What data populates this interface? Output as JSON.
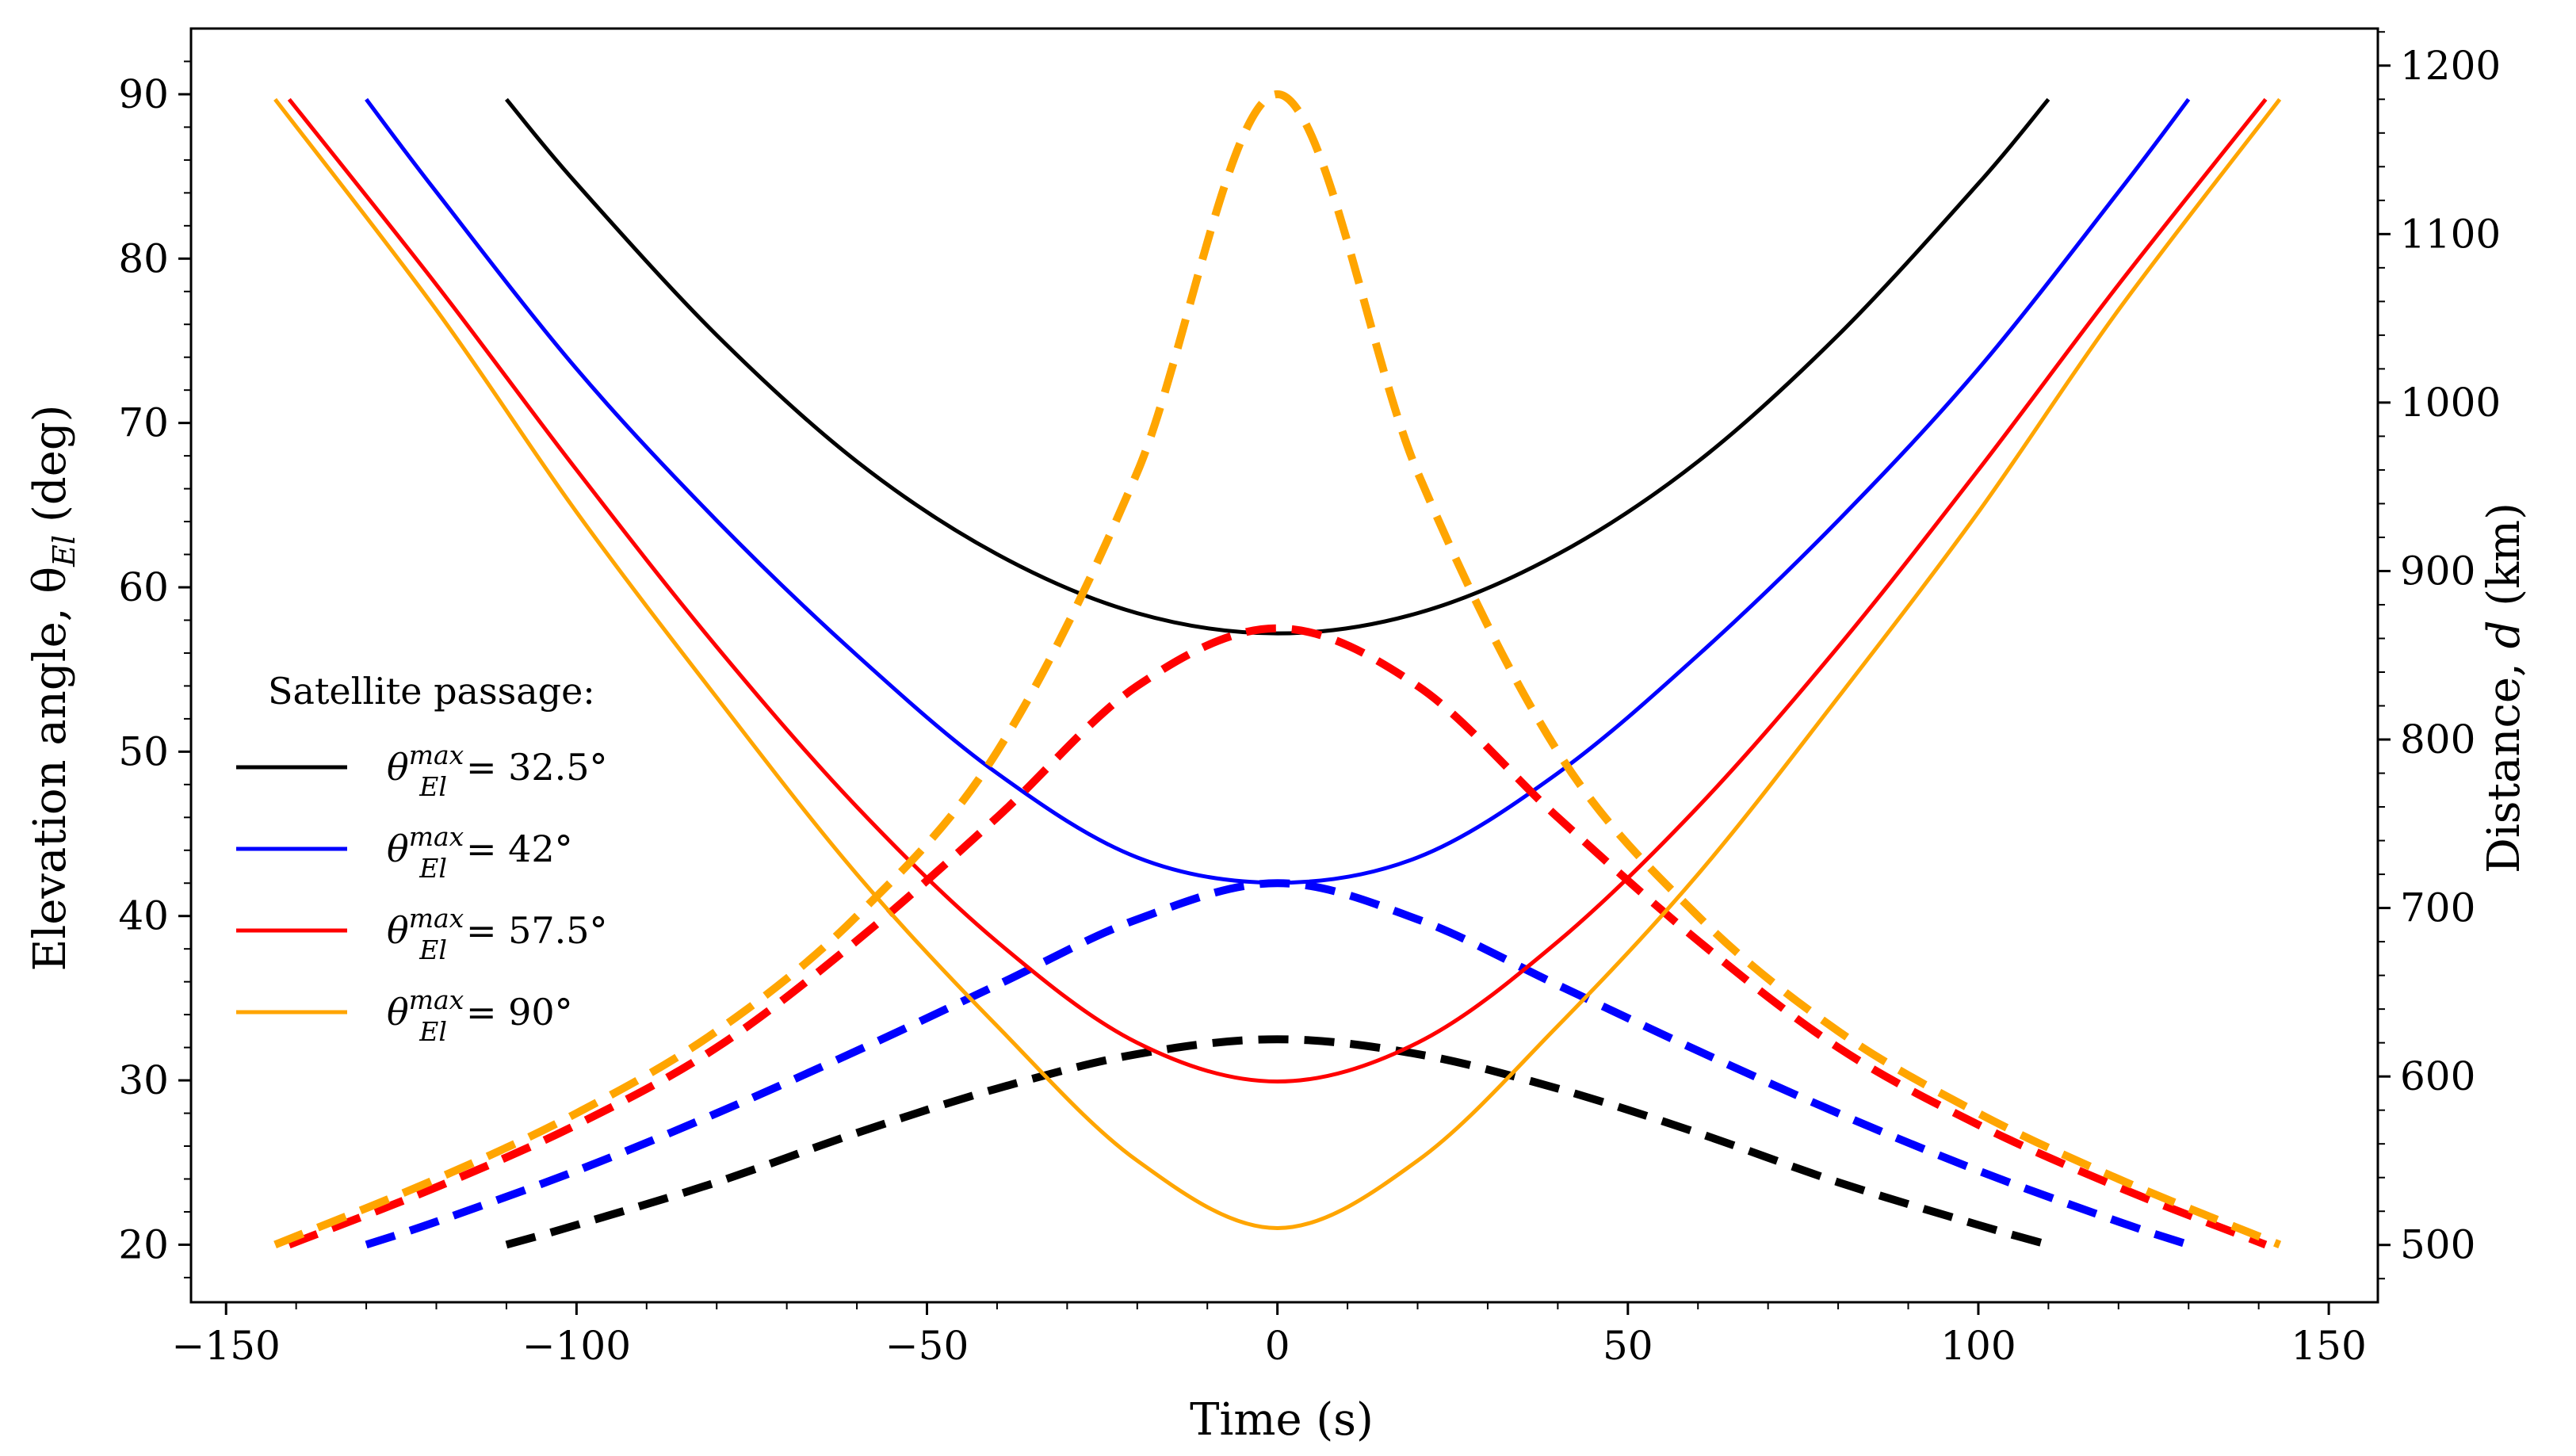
{
  "chart_data": {
    "type": "line",
    "title": "",
    "xlabel": "Time (s)",
    "ylabel_left": "Elevation angle, θ",
    "ylabel_left_sub": "El",
    "ylabel_left_unit": "(deg)",
    "ylabel_right": "Distance,",
    "ylabel_right_var": "d",
    "ylabel_right_unit": "(km)",
    "xlim": [
      -155,
      157
    ],
    "ylim_left": [
      16.5,
      94
    ],
    "ylim_right": [
      466,
      1222
    ],
    "x_ticks": [
      -150,
      -100,
      -50,
      0,
      50,
      100,
      150
    ],
    "x_tick_labels": [
      "−150",
      "−100",
      "−50",
      "0",
      "50",
      "100",
      "150"
    ],
    "y_left_ticks": [
      20,
      30,
      40,
      50,
      60,
      70,
      80,
      90
    ],
    "y_left_tick_labels": [
      "20",
      "30",
      "40",
      "50",
      "60",
      "70",
      "80",
      "90"
    ],
    "y_right_ticks": [
      500,
      600,
      700,
      800,
      900,
      1000,
      1100,
      1200
    ],
    "y_right_tick_labels": [
      "500",
      "600",
      "700",
      "800",
      "900",
      "1000",
      "1100",
      "1200"
    ],
    "legend": {
      "title": "Satellite passage:",
      "placement": "center-left",
      "entries": [
        {
          "symbol": "θ",
          "sub": "El",
          "sup": "max",
          "text": "= 32.5°"
        },
        {
          "symbol": "θ",
          "sub": "El",
          "sup": "max",
          "text": "= 42°"
        },
        {
          "symbol": "θ",
          "sub": "El",
          "sup": "max",
          "text": "= 57.5°"
        },
        {
          "symbol": "θ",
          "sub": "El",
          "sup": "max",
          "text": "= 90°"
        }
      ]
    },
    "series": [
      {
        "name": "θElmax = 32.5°",
        "color": "#000000",
        "elevation_dashed": {
          "axis": "left",
          "x": [
            -110,
            -100,
            -80,
            -60,
            -40,
            -20,
            0,
            20,
            40,
            60,
            80,
            100,
            110
          ],
          "y": [
            20,
            21.2,
            23.8,
            26.8,
            29.5,
            31.6,
            32.5,
            31.6,
            29.5,
            26.8,
            23.8,
            21.2,
            20
          ]
        },
        "distance_solid": {
          "axis": "right",
          "x": [
            -110,
            -100,
            -80,
            -60,
            -40,
            -20,
            0,
            20,
            40,
            60,
            80,
            100,
            110
          ],
          "y": [
            1180,
            1130,
            1040,
            965,
            910,
            875,
            863,
            875,
            910,
            965,
            1040,
            1130,
            1180
          ]
        }
      },
      {
        "name": "θElmax = 42°",
        "color": "#0000ff",
        "elevation_dashed": {
          "axis": "left",
          "x": [
            -130,
            -120,
            -100,
            -80,
            -60,
            -40,
            -20,
            0,
            20,
            40,
            60,
            80,
            100,
            120,
            130
          ],
          "y": [
            20,
            21.4,
            24.5,
            28,
            31.8,
            35.8,
            39.8,
            42,
            39.8,
            35.8,
            31.8,
            28,
            24.5,
            21.4,
            20
          ]
        },
        "distance_solid": {
          "axis": "right",
          "x": [
            -130,
            -120,
            -100,
            -80,
            -60,
            -40,
            -20,
            0,
            20,
            40,
            60,
            80,
            100,
            120,
            130
          ],
          "y": [
            1180,
            1125,
            1020,
            930,
            850,
            780,
            730,
            715,
            730,
            780,
            850,
            930,
            1020,
            1125,
            1180
          ]
        }
      },
      {
        "name": "θElmax = 57.5°",
        "color": "#ff0000",
        "elevation_dashed": {
          "axis": "left",
          "x": [
            -141,
            -120,
            -100,
            -80,
            -60,
            -40,
            -20,
            0,
            20,
            40,
            60,
            80,
            100,
            120,
            141
          ],
          "y": [
            20,
            23.5,
            27.3,
            32,
            38.5,
            46,
            54,
            57.5,
            54,
            46,
            38.5,
            32,
            27.3,
            23.5,
            20
          ]
        },
        "distance_solid": {
          "axis": "right",
          "x": [
            -141,
            -120,
            -100,
            -80,
            -60,
            -40,
            -20,
            0,
            20,
            40,
            60,
            80,
            100,
            120,
            141
          ],
          "y": [
            1180,
            1070,
            960,
            855,
            760,
            680,
            620,
            597,
            620,
            680,
            760,
            855,
            960,
            1070,
            1180
          ]
        }
      },
      {
        "name": "θElmax = 90°",
        "color": "#ffa500",
        "elevation_dashed": {
          "axis": "left",
          "x": [
            -143,
            -120,
            -100,
            -80,
            -60,
            -40,
            -20,
            0,
            20,
            40,
            60,
            80,
            100,
            120,
            143
          ],
          "y": [
            20,
            24,
            28,
            33,
            40,
            50,
            67,
            90,
            67,
            50,
            40,
            33,
            28,
            24,
            20
          ]
        },
        "distance_solid": {
          "axis": "right",
          "x": [
            -143,
            -120,
            -100,
            -80,
            -60,
            -40,
            -20,
            0,
            20,
            40,
            60,
            80,
            100,
            120,
            143
          ],
          "y": [
            1180,
            1055,
            935,
            825,
            720,
            630,
            550,
            510,
            550,
            630,
            720,
            825,
            935,
            1055,
            1180
          ]
        }
      }
    ]
  }
}
